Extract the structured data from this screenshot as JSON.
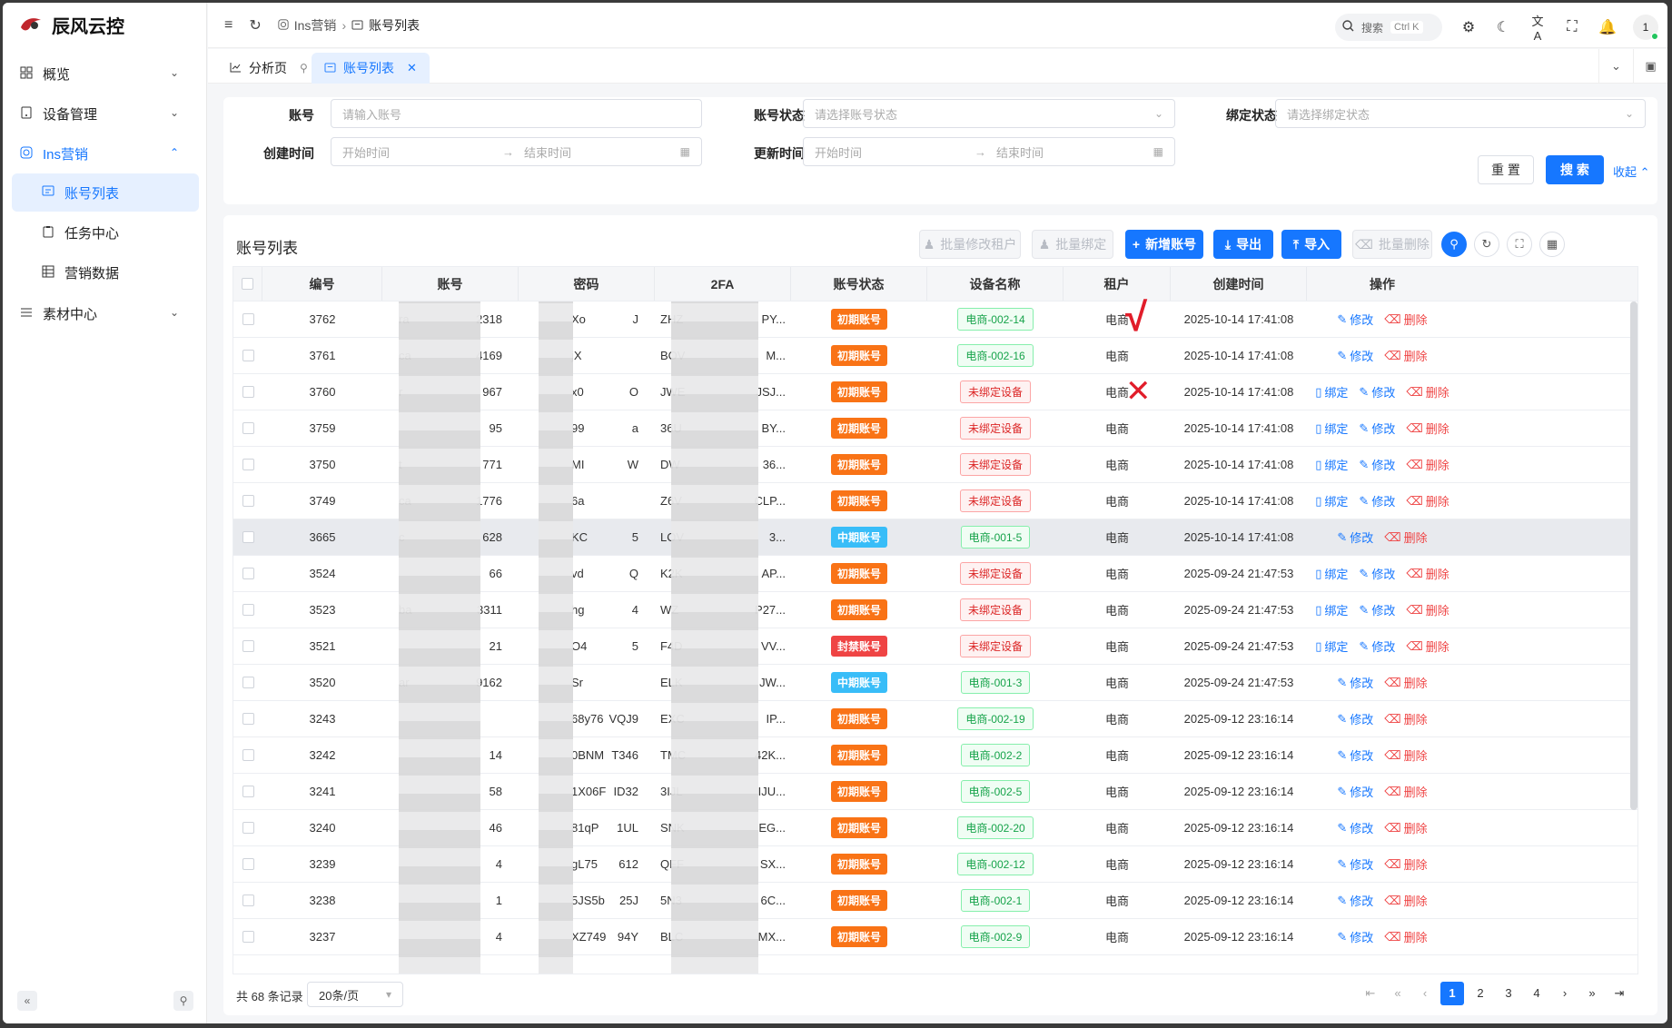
{
  "app": {
    "name": "辰风云控"
  },
  "sidebar": {
    "items": [
      {
        "label": "概览",
        "icon": "grid-icon"
      },
      {
        "label": "设备管理",
        "icon": "device-icon"
      },
      {
        "label": "Ins营销",
        "icon": "instagram-icon"
      },
      {
        "label": "素材中心",
        "icon": "list-icon"
      }
    ],
    "sub_items": [
      {
        "label": "账号列表",
        "icon": "id-card-icon"
      },
      {
        "label": "任务中心",
        "icon": "clipboard-icon"
      },
      {
        "label": "营销数据",
        "icon": "table-icon"
      }
    ]
  },
  "header": {
    "breadcrumb": [
      "Ins营销",
      "账号列表"
    ],
    "search_label": "搜索",
    "search_kbd": "Ctrl K",
    "avatar_text": "1"
  },
  "tabs": [
    {
      "label": "分析页"
    },
    {
      "label": "账号列表"
    }
  ],
  "filter": {
    "account_label": "账号",
    "account_placeholder": "请输入账号",
    "status_label": "账号状态",
    "status_placeholder": "请选择账号状态",
    "bind_label": "绑定状态",
    "bind_placeholder": "请选择绑定状态",
    "created_label": "创建时间",
    "updated_label": "更新时间",
    "start_placeholder": "开始时间",
    "end_placeholder": "结束时间",
    "reset_label": "重 置",
    "search_label": "搜 索",
    "collapse_label": "收起"
  },
  "table": {
    "title": "账号列表",
    "toolbar": {
      "batch_tenant": "批量修改租户",
      "batch_bind": "批量绑定",
      "add": "新增账号",
      "export": "导出",
      "import": "导入",
      "batch_delete": "批量删除"
    },
    "columns": [
      "编号",
      "账号",
      "密码",
      "2FA",
      "账号状态",
      "设备名称",
      "租户",
      "创建时间",
      "操作"
    ],
    "ops": {
      "bind": "绑定",
      "edit": "修改",
      "delete": "删除"
    },
    "rows": [
      {
        "id": "3762",
        "acct_l": "ra",
        "acct_r": "2318",
        "pwd_l": "Xo",
        "pwd_r": "J",
        "fa_l": "ZHZ",
        "fa_r": "PY...",
        "status": "初期账号",
        "status_color": "#f97316",
        "device": "电商-002-14",
        "bound": true,
        "tenant": "电商",
        "created": "2025-10-14 17:41:08"
      },
      {
        "id": "3761",
        "acct_l": "ca",
        "acct_r": "4169",
        "pwd_l": "jX",
        "pwd_r": "",
        "fa_l": "BOV",
        "fa_r": "M...",
        "status": "初期账号",
        "status_color": "#f97316",
        "device": "电商-002-16",
        "bound": true,
        "tenant": "电商",
        "created": "2025-10-14 17:41:08"
      },
      {
        "id": "3760",
        "acct_l": "r",
        "acct_r": "967",
        "pwd_l": "x0",
        "pwd_r": "O",
        "fa_l": "JWE",
        "fa_r": "JSJ...",
        "status": "初期账号",
        "status_color": "#f97316",
        "device": "未绑定设备",
        "bound": false,
        "tenant": "电商",
        "created": "2025-10-14 17:41:08"
      },
      {
        "id": "3759",
        "acct_l": "",
        "acct_r": "95",
        "pwd_l": "99",
        "pwd_r": "a",
        "fa_l": "36U",
        "fa_r": "BY...",
        "status": "初期账号",
        "status_color": "#f97316",
        "device": "未绑定设备",
        "bound": false,
        "tenant": "电商",
        "created": "2025-10-14 17:41:08"
      },
      {
        "id": "3750",
        "acct_l": "t",
        "acct_r": "771",
        "pwd_l": "MI",
        "pwd_r": "W",
        "fa_l": "DW",
        "fa_r": "36...",
        "status": "初期账号",
        "status_color": "#f97316",
        "device": "未绑定设备",
        "bound": false,
        "tenant": "电商",
        "created": "2025-10-14 17:41:08"
      },
      {
        "id": "3749",
        "acct_l": "ca",
        "acct_r": "1776",
        "pwd_l": "6a",
        "pwd_r": "",
        "fa_l": "Z6V",
        "fa_r": "CLP...",
        "status": "初期账号",
        "status_color": "#f97316",
        "device": "未绑定设备",
        "bound": false,
        "tenant": "电商",
        "created": "2025-10-14 17:41:08"
      },
      {
        "id": "3665",
        "acct_l": "c",
        "acct_r": "628",
        "pwd_l": "KC",
        "pwd_r": "5",
        "fa_l": "LOV",
        "fa_r": "3...",
        "status": "中期账号",
        "status_color": "#38bdf8",
        "device": "电商-001-5",
        "bound": true,
        "tenant": "电商",
        "created": "2025-10-14 17:41:08"
      },
      {
        "id": "3524",
        "acct_l": "",
        "acct_r": "66",
        "pwd_l": "vd",
        "pwd_r": "Q",
        "fa_l": "K2K",
        "fa_r": "AP...",
        "status": "初期账号",
        "status_color": "#f97316",
        "device": "未绑定设备",
        "bound": false,
        "tenant": "电商",
        "created": "2025-09-24 21:47:53"
      },
      {
        "id": "3523",
        "acct_l": "ba",
        "acct_r": "3311",
        "pwd_l": "hg",
        "pwd_r": "4",
        "fa_l": "WZ",
        "fa_r": "P27...",
        "status": "初期账号",
        "status_color": "#f97316",
        "device": "未绑定设备",
        "bound": false,
        "tenant": "电商",
        "created": "2025-09-24 21:47:53"
      },
      {
        "id": "3521",
        "acct_l": "",
        "acct_r": "21",
        "pwd_l": "O4",
        "pwd_r": "5",
        "fa_l": "F4D",
        "fa_r": "VV...",
        "status": "封禁账号",
        "status_color": "#ef4444",
        "device": "未绑定设备",
        "bound": false,
        "tenant": "电商",
        "created": "2025-09-24 21:47:53"
      },
      {
        "id": "3520",
        "acct_l": "ar",
        "acct_r": "9162",
        "pwd_l": "Sr",
        "pwd_r": "",
        "fa_l": "ELK",
        "fa_r": "JW...",
        "status": "中期账号",
        "status_color": "#38bdf8",
        "device": "电商-001-3",
        "bound": true,
        "tenant": "电商",
        "created": "2025-09-24 21:47:53"
      },
      {
        "id": "3243",
        "acct_l": "",
        "acct_r": "",
        "pwd_l": "68y76",
        "pwd_r": "VQJ9",
        "fa_l": "EXC",
        "fa_r": "IP...",
        "status": "初期账号",
        "status_color": "#f97316",
        "device": "电商-002-19",
        "bound": true,
        "tenant": "电商",
        "created": "2025-09-12 23:16:14"
      },
      {
        "id": "3242",
        "acct_l": "",
        "acct_r": "14",
        "pwd_l": "0BNM",
        "pwd_r": "T346",
        "fa_l": "TMC",
        "fa_r": "42K...",
        "status": "初期账号",
        "status_color": "#f97316",
        "device": "电商-002-2",
        "bound": true,
        "tenant": "电商",
        "created": "2025-09-12 23:16:14"
      },
      {
        "id": "3241",
        "acct_l": "",
        "acct_r": "58",
        "pwd_l": "1X06F",
        "pwd_r": "ID32",
        "fa_l": "3IJL",
        "fa_r": "IJU...",
        "status": "初期账号",
        "status_color": "#f97316",
        "device": "电商-002-5",
        "bound": true,
        "tenant": "电商",
        "created": "2025-09-12 23:16:14"
      },
      {
        "id": "3240",
        "acct_l": "",
        "acct_r": "46",
        "pwd_l": "81qP",
        "pwd_r": "1UL",
        "fa_l": "SNK",
        "fa_r": "EG...",
        "status": "初期账号",
        "status_color": "#f97316",
        "device": "电商-002-20",
        "bound": true,
        "tenant": "电商",
        "created": "2025-09-12 23:16:14"
      },
      {
        "id": "3239",
        "acct_l": "",
        "acct_r": "4",
        "pwd_l": "gL75",
        "pwd_r": "612",
        "fa_l": "QFF",
        "fa_r": "SX...",
        "status": "初期账号",
        "status_color": "#f97316",
        "device": "电商-002-12",
        "bound": true,
        "tenant": "电商",
        "created": "2025-09-12 23:16:14"
      },
      {
        "id": "3238",
        "acct_l": "",
        "acct_r": "1",
        "pwd_l": "5JS5b",
        "pwd_r": "25J",
        "fa_l": "5N3",
        "fa_r": "6C...",
        "status": "初期账号",
        "status_color": "#f97316",
        "device": "电商-002-1",
        "bound": true,
        "tenant": "电商",
        "created": "2025-09-12 23:16:14"
      },
      {
        "id": "3237",
        "acct_l": "",
        "acct_r": "4",
        "pwd_l": "XZ749",
        "pwd_r": "94Y",
        "fa_l": "BLC",
        "fa_r": "MX...",
        "status": "初期账号",
        "status_color": "#f97316",
        "device": "电商-002-9",
        "bound": true,
        "tenant": "电商",
        "created": "2025-09-12 23:16:14"
      }
    ]
  },
  "pagination": {
    "total": "共 68 条记录",
    "page_size": "20条/页",
    "pages": [
      "1",
      "2",
      "3",
      "4"
    ],
    "current": "1"
  },
  "annotations": {
    "check": "√",
    "cross": "✕"
  },
  "colors": {
    "primary": "#1677ff",
    "danger": "#ef4444",
    "early": "#f97316",
    "mid": "#38bdf8"
  }
}
